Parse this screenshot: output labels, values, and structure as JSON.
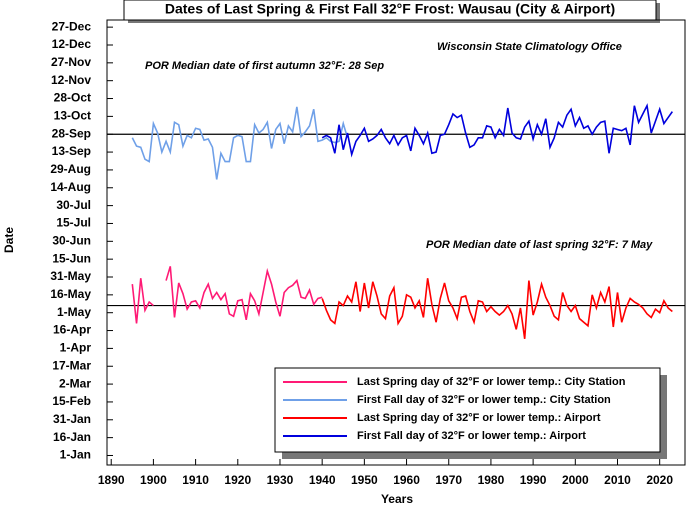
{
  "chart_data": {
    "type": "line",
    "title": "Dates of  Last Spring & First Fall 32°F Frost: Wausau (City & Airport)",
    "xlabel": "Years",
    "ylabel": "Date",
    "annotation": "Wisconsin State Climatology Office",
    "reference_lines": [
      {
        "value": 271,
        "label": "POR Median date of first autumn 32°F:  28 Sep"
      },
      {
        "value": 127,
        "label": "POR Median date of last spring 32°F:  7 May"
      }
    ],
    "xlim": [
      1889,
      2026
    ],
    "xticks": [
      1890,
      1900,
      1910,
      1920,
      1930,
      1940,
      1950,
      1960,
      1970,
      1980,
      1990,
      2000,
      2010,
      2020
    ],
    "ylim": [
      -7,
      367
    ],
    "yticks": [
      {
        "value": 1,
        "label": "1-Jan"
      },
      {
        "value": 16,
        "label": "16-Jan"
      },
      {
        "value": 31,
        "label": "31-Jan"
      },
      {
        "value": 46,
        "label": "15-Feb"
      },
      {
        "value": 61,
        "label": "2-Mar"
      },
      {
        "value": 76,
        "label": "17-Mar"
      },
      {
        "value": 91,
        "label": "1-Apr"
      },
      {
        "value": 106,
        "label": "16-Apr"
      },
      {
        "value": 121,
        "label": "1-May"
      },
      {
        "value": 136,
        "label": "16-May"
      },
      {
        "value": 151,
        "label": "31-May"
      },
      {
        "value": 166,
        "label": "15-Jun"
      },
      {
        "value": 181,
        "label": "30-Jun"
      },
      {
        "value": 196,
        "label": "15-Jul"
      },
      {
        "value": 211,
        "label": "30-Jul"
      },
      {
        "value": 226,
        "label": "14-Aug"
      },
      {
        "value": 241,
        "label": "29-Aug"
      },
      {
        "value": 256,
        "label": "13-Sep"
      },
      {
        "value": 271,
        "label": "28-Sep"
      },
      {
        "value": 286,
        "label": "13-Oct"
      },
      {
        "value": 301,
        "label": "28-Oct"
      },
      {
        "value": 316,
        "label": "12-Nov"
      },
      {
        "value": 331,
        "label": "27-Nov"
      },
      {
        "value": 346,
        "label": "12-Dec"
      },
      {
        "value": 361,
        "label": "27-Dec"
      }
    ],
    "legend": "lower right",
    "x": [
      1895,
      1896,
      1897,
      1898,
      1899,
      1900,
      1901,
      1902,
      1903,
      1904,
      1905,
      1906,
      1907,
      1908,
      1909,
      1910,
      1911,
      1912,
      1913,
      1914,
      1915,
      1916,
      1917,
      1918,
      1919,
      1920,
      1921,
      1922,
      1923,
      1924,
      1925,
      1926,
      1927,
      1928,
      1929,
      1930,
      1931,
      1932,
      1933,
      1934,
      1935,
      1936,
      1937,
      1938,
      1939,
      1940,
      1941,
      1942,
      1943,
      1944,
      1945,
      1946,
      1947,
      1948,
      1949,
      1950,
      1951,
      1952,
      1953,
      1954,
      1955,
      1956,
      1957,
      1958,
      1959,
      1960,
      1961,
      1962,
      1963,
      1964,
      1965,
      1966,
      1967,
      1968,
      1969,
      1970,
      1971,
      1972,
      1973,
      1974,
      1975,
      1976,
      1977,
      1978,
      1979,
      1980,
      1981,
      1982,
      1983,
      1984,
      1985,
      1986,
      1987,
      1988,
      1989,
      1990,
      1991,
      1992,
      1993,
      1994,
      1995,
      1996,
      1997,
      1998,
      1999,
      2000,
      2001,
      2002,
      2003,
      2004,
      2005,
      2006,
      2007,
      2008,
      2009,
      2010,
      2011,
      2012,
      2013,
      2014,
      2015,
      2016,
      2017,
      2018,
      2019,
      2020,
      2021,
      2022,
      2023
    ],
    "series": [
      {
        "name": "Last Spring day of 32°F or lower temp.: City Station",
        "color": "#ff1a75",
        "values": [
          145,
          112,
          150,
          123,
          130,
          127,
          null,
          null,
          148,
          160,
          117,
          146,
          137,
          124,
          130,
          131,
          125,
          138,
          145,
          133,
          138,
          132,
          137,
          120,
          118,
          131,
          132,
          115,
          137,
          131,
          120,
          138,
          156,
          145,
          130,
          118,
          138,
          142,
          144,
          148,
          134,
          133,
          140,
          128,
          133,
          134,
          null,
          null,
          null,
          null,
          null,
          null,
          null,
          null,
          null,
          null,
          null,
          null,
          null,
          null,
          null,
          null,
          null,
          null,
          null,
          null,
          null,
          null,
          null,
          null,
          null,
          null,
          null,
          null,
          null,
          null,
          null,
          null,
          null,
          null,
          null,
          null,
          null,
          null,
          null,
          null,
          null,
          null,
          null,
          null,
          null,
          null,
          null,
          null,
          null,
          null,
          null,
          null,
          null,
          null,
          null,
          null,
          null,
          null,
          null,
          null,
          null,
          null,
          null,
          null,
          null,
          null,
          null,
          null,
          null,
          null,
          null,
          null,
          null,
          null,
          null,
          null,
          null,
          null,
          null,
          null,
          null,
          null,
          null
        ]
      },
      {
        "name": "First Fall day of 32°F or lower temp.: City Station",
        "color": "#6fa0e8",
        "values": [
          268,
          261,
          260,
          250,
          248,
          280,
          272,
          256,
          265,
          256,
          281,
          279,
          261,
          270,
          268,
          276,
          275,
          266,
          267,
          260,
          233,
          255,
          248,
          248,
          268,
          270,
          269,
          248,
          248,
          279,
          272,
          275,
          281,
          259,
          275,
          280,
          263,
          278,
          273,
          294,
          269,
          273,
          278,
          292,
          265,
          266,
          268,
          265,
          264,
          265,
          280,
          268,
          null,
          null,
          null,
          null,
          null,
          null,
          null,
          null,
          null,
          null,
          null,
          null,
          null,
          null,
          null,
          null,
          null,
          null,
          null,
          null,
          null,
          null,
          null,
          null,
          null,
          null,
          null,
          null,
          null,
          null,
          null,
          null,
          null,
          null,
          null,
          null,
          null,
          null,
          null,
          null,
          null,
          null,
          null,
          null,
          null,
          null,
          null,
          null,
          null,
          null,
          null,
          null,
          null,
          null,
          null,
          null,
          null,
          null,
          null,
          null,
          null,
          null,
          null,
          null,
          null,
          null,
          null,
          null,
          null,
          null,
          null,
          null,
          null,
          null,
          null,
          null,
          null
        ]
      },
      {
        "name": "Last Spring day of 32°F or lower temp.: Airport",
        "color": "#ff0000",
        "values": [
          null,
          null,
          null,
          null,
          null,
          null,
          null,
          null,
          null,
          null,
          null,
          null,
          null,
          null,
          null,
          null,
          null,
          null,
          null,
          null,
          null,
          null,
          null,
          null,
          null,
          null,
          null,
          null,
          null,
          null,
          null,
          null,
          null,
          null,
          null,
          null,
          null,
          null,
          null,
          null,
          null,
          null,
          null,
          null,
          null,
          133,
          123,
          115,
          112,
          130,
          127,
          135,
          130,
          147,
          122,
          146,
          125,
          147,
          135,
          120,
          116,
          135,
          142,
          112,
          118,
          136,
          134,
          125,
          131,
          117,
          150,
          128,
          113,
          133,
          146,
          131,
          125,
          116,
          134,
          135,
          122,
          113,
          131,
          130,
          122,
          126,
          122,
          119,
          122,
          127,
          120,
          107,
          125,
          99,
          148,
          119,
          130,
          145,
          134,
          127,
          118,
          115,
          138,
          127,
          122,
          127,
          116,
          113,
          110,
          136,
          125,
          138,
          130,
          143,
          109,
          138,
          113,
          125,
          133,
          130,
          128,
          125,
          120,
          117,
          124,
          121,
          131,
          125,
          122
        ]
      },
      {
        "name": "First Fall day of 32°F or lower temp.: Airport",
        "color": "#0000dd",
        "values": [
          null,
          null,
          null,
          null,
          null,
          null,
          null,
          null,
          null,
          null,
          null,
          null,
          null,
          null,
          null,
          null,
          null,
          null,
          null,
          null,
          null,
          null,
          null,
          null,
          null,
          null,
          null,
          null,
          null,
          null,
          null,
          null,
          null,
          null,
          null,
          null,
          null,
          null,
          null,
          null,
          null,
          null,
          null,
          null,
          null,
          268,
          270,
          268,
          255,
          279,
          258,
          272,
          254,
          265,
          270,
          276,
          265,
          267,
          270,
          275,
          268,
          263,
          270,
          262,
          268,
          270,
          257,
          276,
          270,
          263,
          272,
          255,
          256,
          270,
          271,
          279,
          288,
          285,
          287,
          272,
          260,
          262,
          268,
          268,
          278,
          277,
          268,
          275,
          270,
          293,
          272,
          268,
          267,
          277,
          282,
          267,
          279,
          271,
          284,
          260,
          268,
          281,
          277,
          287,
          292,
          278,
          285,
          276,
          278,
          271,
          277,
          281,
          282,
          255,
          276,
          275,
          274,
          276,
          262,
          295,
          281,
          288,
          295,
          272,
          282,
          292,
          280,
          285,
          290
        ]
      }
    ]
  }
}
